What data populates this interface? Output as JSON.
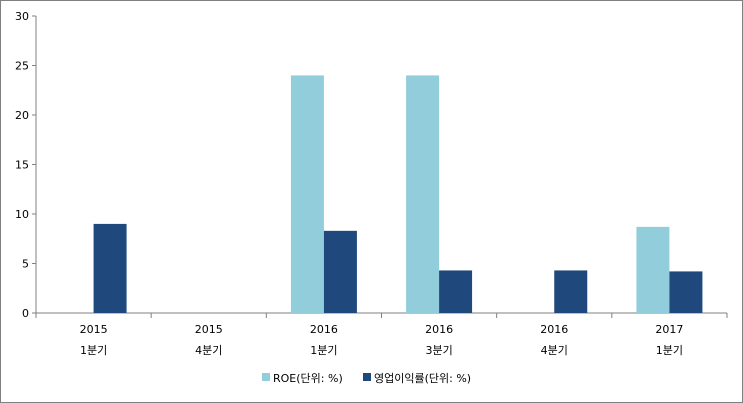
{
  "chart_data": {
    "type": "bar",
    "categories": [
      [
        "2015",
        "1분기"
      ],
      [
        "2015",
        "4분기"
      ],
      [
        "2016",
        "1분기"
      ],
      [
        "2016",
        "3분기"
      ],
      [
        "2016",
        "4분기"
      ],
      [
        "2017",
        "1분기"
      ]
    ],
    "series": [
      {
        "name": "ROE(단위: %)",
        "color": "#92cddc",
        "values": [
          null,
          null,
          24,
          24,
          null,
          8.7
        ]
      },
      {
        "name": "영업이익률(단위: %)",
        "color": "#1f497d",
        "values": [
          9,
          null,
          8.3,
          4.3,
          4.3,
          4.2
        ]
      }
    ],
    "ylim": [
      0,
      30
    ],
    "yticks": [
      0,
      5,
      10,
      15,
      20,
      25,
      30
    ],
    "grid": false,
    "legend_position": "bottom"
  }
}
